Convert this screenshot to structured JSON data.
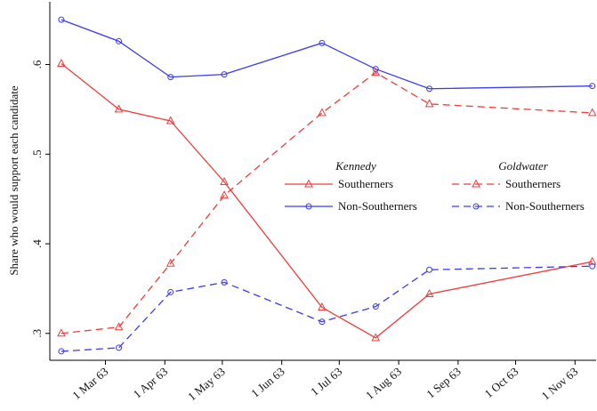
{
  "chart_data": {
    "type": "line",
    "y_label": "Share who would support each candidate",
    "x": [
      "1963-02-06",
      "1963-03-08",
      "1963-04-04",
      "1963-05-02",
      "1963-06-22",
      "1963-07-20",
      "1963-08-17",
      "1963-11-10"
    ],
    "xlim": [
      "1963-01-31",
      "1963-11-12"
    ],
    "xticks": [
      {
        "value": "1963-03-01",
        "label": "1 Mar 63"
      },
      {
        "value": "1963-04-01",
        "label": "1 Apr 63"
      },
      {
        "value": "1963-05-01",
        "label": "1 May 63"
      },
      {
        "value": "1963-06-01",
        "label": "1 Jun 63"
      },
      {
        "value": "1963-07-01",
        "label": "1 Jul 63"
      },
      {
        "value": "1963-08-01",
        "label": "1 Aug 63"
      },
      {
        "value": "1963-09-01",
        "label": "1 Sep 63"
      },
      {
        "value": "1963-10-01",
        "label": "1 Oct 63"
      },
      {
        "value": "1963-11-01",
        "label": "1 Nov 63"
      }
    ],
    "ylim": [
      0.27,
      0.67
    ],
    "yticks": [
      {
        "value": 0.3,
        "label": ".3"
      },
      {
        "value": 0.4,
        "label": ".4"
      },
      {
        "value": 0.5,
        "label": ".5"
      },
      {
        "value": 0.6,
        "label": ".6"
      }
    ],
    "legend_groups": [
      "Kennedy",
      "Goldwater"
    ],
    "series": [
      {
        "name": "Southerners",
        "color": "#f03c3c",
        "marker": "triangle",
        "dash": "solid",
        "values": [
          0.601,
          0.55,
          0.537,
          0.469,
          0.329,
          0.295,
          0.344,
          0.38
        ]
      },
      {
        "name": "Non-Southerners",
        "color": "#3c3cf0",
        "marker": "circle",
        "dash": "solid",
        "values": [
          0.65,
          0.626,
          0.586,
          0.589,
          0.624,
          0.595,
          0.573,
          0.576
        ]
      },
      {
        "name": "Southerners",
        "color": "#f03c3c",
        "marker": "triangle",
        "dash": "dashed",
        "values": [
          0.3,
          0.307,
          0.378,
          0.454,
          0.546,
          0.591,
          0.556,
          0.546
        ]
      },
      {
        "name": "Non-Southerners",
        "color": "#3c3cf0",
        "marker": "circle",
        "dash": "dashed",
        "values": [
          0.28,
          0.284,
          0.346,
          0.357,
          0.313,
          0.33,
          0.371,
          0.375
        ]
      }
    ]
  }
}
